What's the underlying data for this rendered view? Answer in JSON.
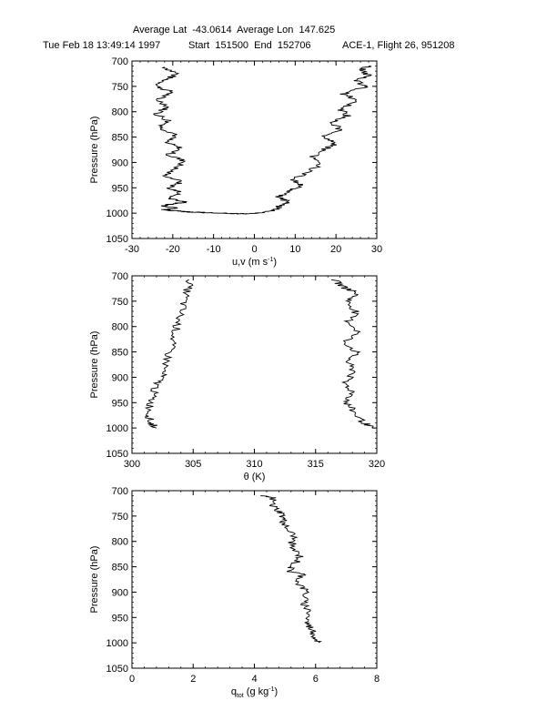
{
  "header": {
    "line1": "Average Lat  -43.0614  Average Lon  147.625",
    "line2_date": "Tue Feb 18 13:49:14 1997",
    "line2_range": "Start  151500  End  152706",
    "line2_flight": "ACE-1, Flight 26, 951208"
  },
  "chart_data": [
    {
      "type": "line",
      "ylabel": "Pressure (hPa)",
      "xlabel": "u,v (m s",
      "xlabel_sup": "-1",
      "xlabel_tail": ")",
      "xlim": [
        -30,
        30
      ],
      "ylim": [
        700,
        1050
      ],
      "y_inverted": true,
      "xticks": [
        "-30",
        "-20",
        "-10",
        "0",
        "10",
        "20",
        "30"
      ],
      "yticks": [
        "700",
        "750",
        "800",
        "850",
        "900",
        "950",
        "1000",
        "1050"
      ],
      "series": [
        {
          "x": [
            -22,
            -19,
            -22,
            -24,
            -20,
            -24,
            -21,
            -24,
            -21,
            -23,
            -19,
            -22,
            -18,
            -21,
            -17,
            -19,
            -22,
            -18,
            -21,
            -18,
            -21,
            -17,
            -20,
            -22,
            -19,
            -22,
            -20,
            -17,
            -15,
            -12,
            -8,
            -5,
            -2
          ],
          "y": [
            712,
            725,
            738,
            750,
            762,
            775,
            790,
            805,
            818,
            832,
            845,
            860,
            872,
            885,
            898,
            910,
            925,
            938,
            950,
            960,
            970,
            978,
            982,
            986,
            990,
            993,
            995,
            997,
            998,
            999,
            1000,
            1001,
            1001
          ]
        },
        {
          "x": [
            -2,
            2,
            5,
            6,
            8,
            6,
            9,
            12,
            9,
            13,
            16,
            14,
            17,
            20,
            17,
            21,
            19,
            23,
            21,
            25,
            22,
            27,
            25,
            28,
            26,
            28
          ],
          "y": [
            1001,
            999,
            995,
            988,
            978,
            968,
            955,
            945,
            935,
            920,
            905,
            890,
            875,
            862,
            850,
            835,
            820,
            808,
            795,
            780,
            765,
            752,
            740,
            728,
            718,
            710
          ]
        }
      ]
    },
    {
      "type": "line",
      "ylabel": "Pressure (hPa)",
      "xlabel": "θ (K)",
      "xlim": [
        300,
        320
      ],
      "ylim": [
        700,
        1050
      ],
      "y_inverted": true,
      "xticks": [
        "300",
        "305",
        "310",
        "315",
        "320"
      ],
      "yticks": [
        "700",
        "750",
        "800",
        "850",
        "900",
        "950",
        "1000",
        "1050"
      ],
      "series": [
        {
          "x": [
            304.8,
            304.5,
            304.2,
            303.9,
            303.6,
            303.3,
            303.0,
            302.7,
            302.4,
            302.0,
            301.7,
            301.5,
            301.4,
            301.5,
            302.0
          ],
          "y": [
            708,
            730,
            755,
            780,
            805,
            830,
            855,
            880,
            900,
            915,
            935,
            955,
            975,
            990,
            1000
          ]
        },
        {
          "x": [
            316.5,
            317.3,
            318.4,
            317.6,
            318.3,
            317.7,
            318.5,
            317.4,
            318.3,
            317.6,
            318.2,
            317.3,
            318.1,
            317.5,
            318.0,
            318.7,
            319.6
          ],
          "y": [
            708,
            722,
            735,
            752,
            770,
            790,
            810,
            830,
            850,
            870,
            890,
            910,
            930,
            950,
            965,
            985,
            1000
          ]
        }
      ]
    },
    {
      "type": "line",
      "ylabel": "Pressure (hPa)",
      "xlabel": "q",
      "xlabel_sub": "tot",
      "xlabel_tail": " (g kg",
      "xlabel_sup": "-1",
      "xlabel_end": ")",
      "xlim": [
        0,
        8
      ],
      "ylim": [
        700,
        1050
      ],
      "y_inverted": true,
      "xticks": [
        "0",
        "2",
        "4",
        "6",
        "8"
      ],
      "yticks": [
        "700",
        "750",
        "800",
        "850",
        "900",
        "950",
        "1000",
        "1050"
      ],
      "series": [
        {
          "x": [
            4.2,
            4.6,
            4.6,
            4.9,
            4.95,
            5.0,
            5.3,
            5.2,
            5.5,
            5.3,
            5.1,
            5.6,
            5.4,
            5.7,
            5.6,
            5.8,
            5.7,
            5.9,
            6.0,
            6.1
          ],
          "y": [
            710,
            714,
            730,
            745,
            760,
            770,
            790,
            810,
            830,
            845,
            858,
            865,
            880,
            900,
            920,
            940,
            960,
            975,
            990,
            1000
          ]
        }
      ]
    }
  ]
}
